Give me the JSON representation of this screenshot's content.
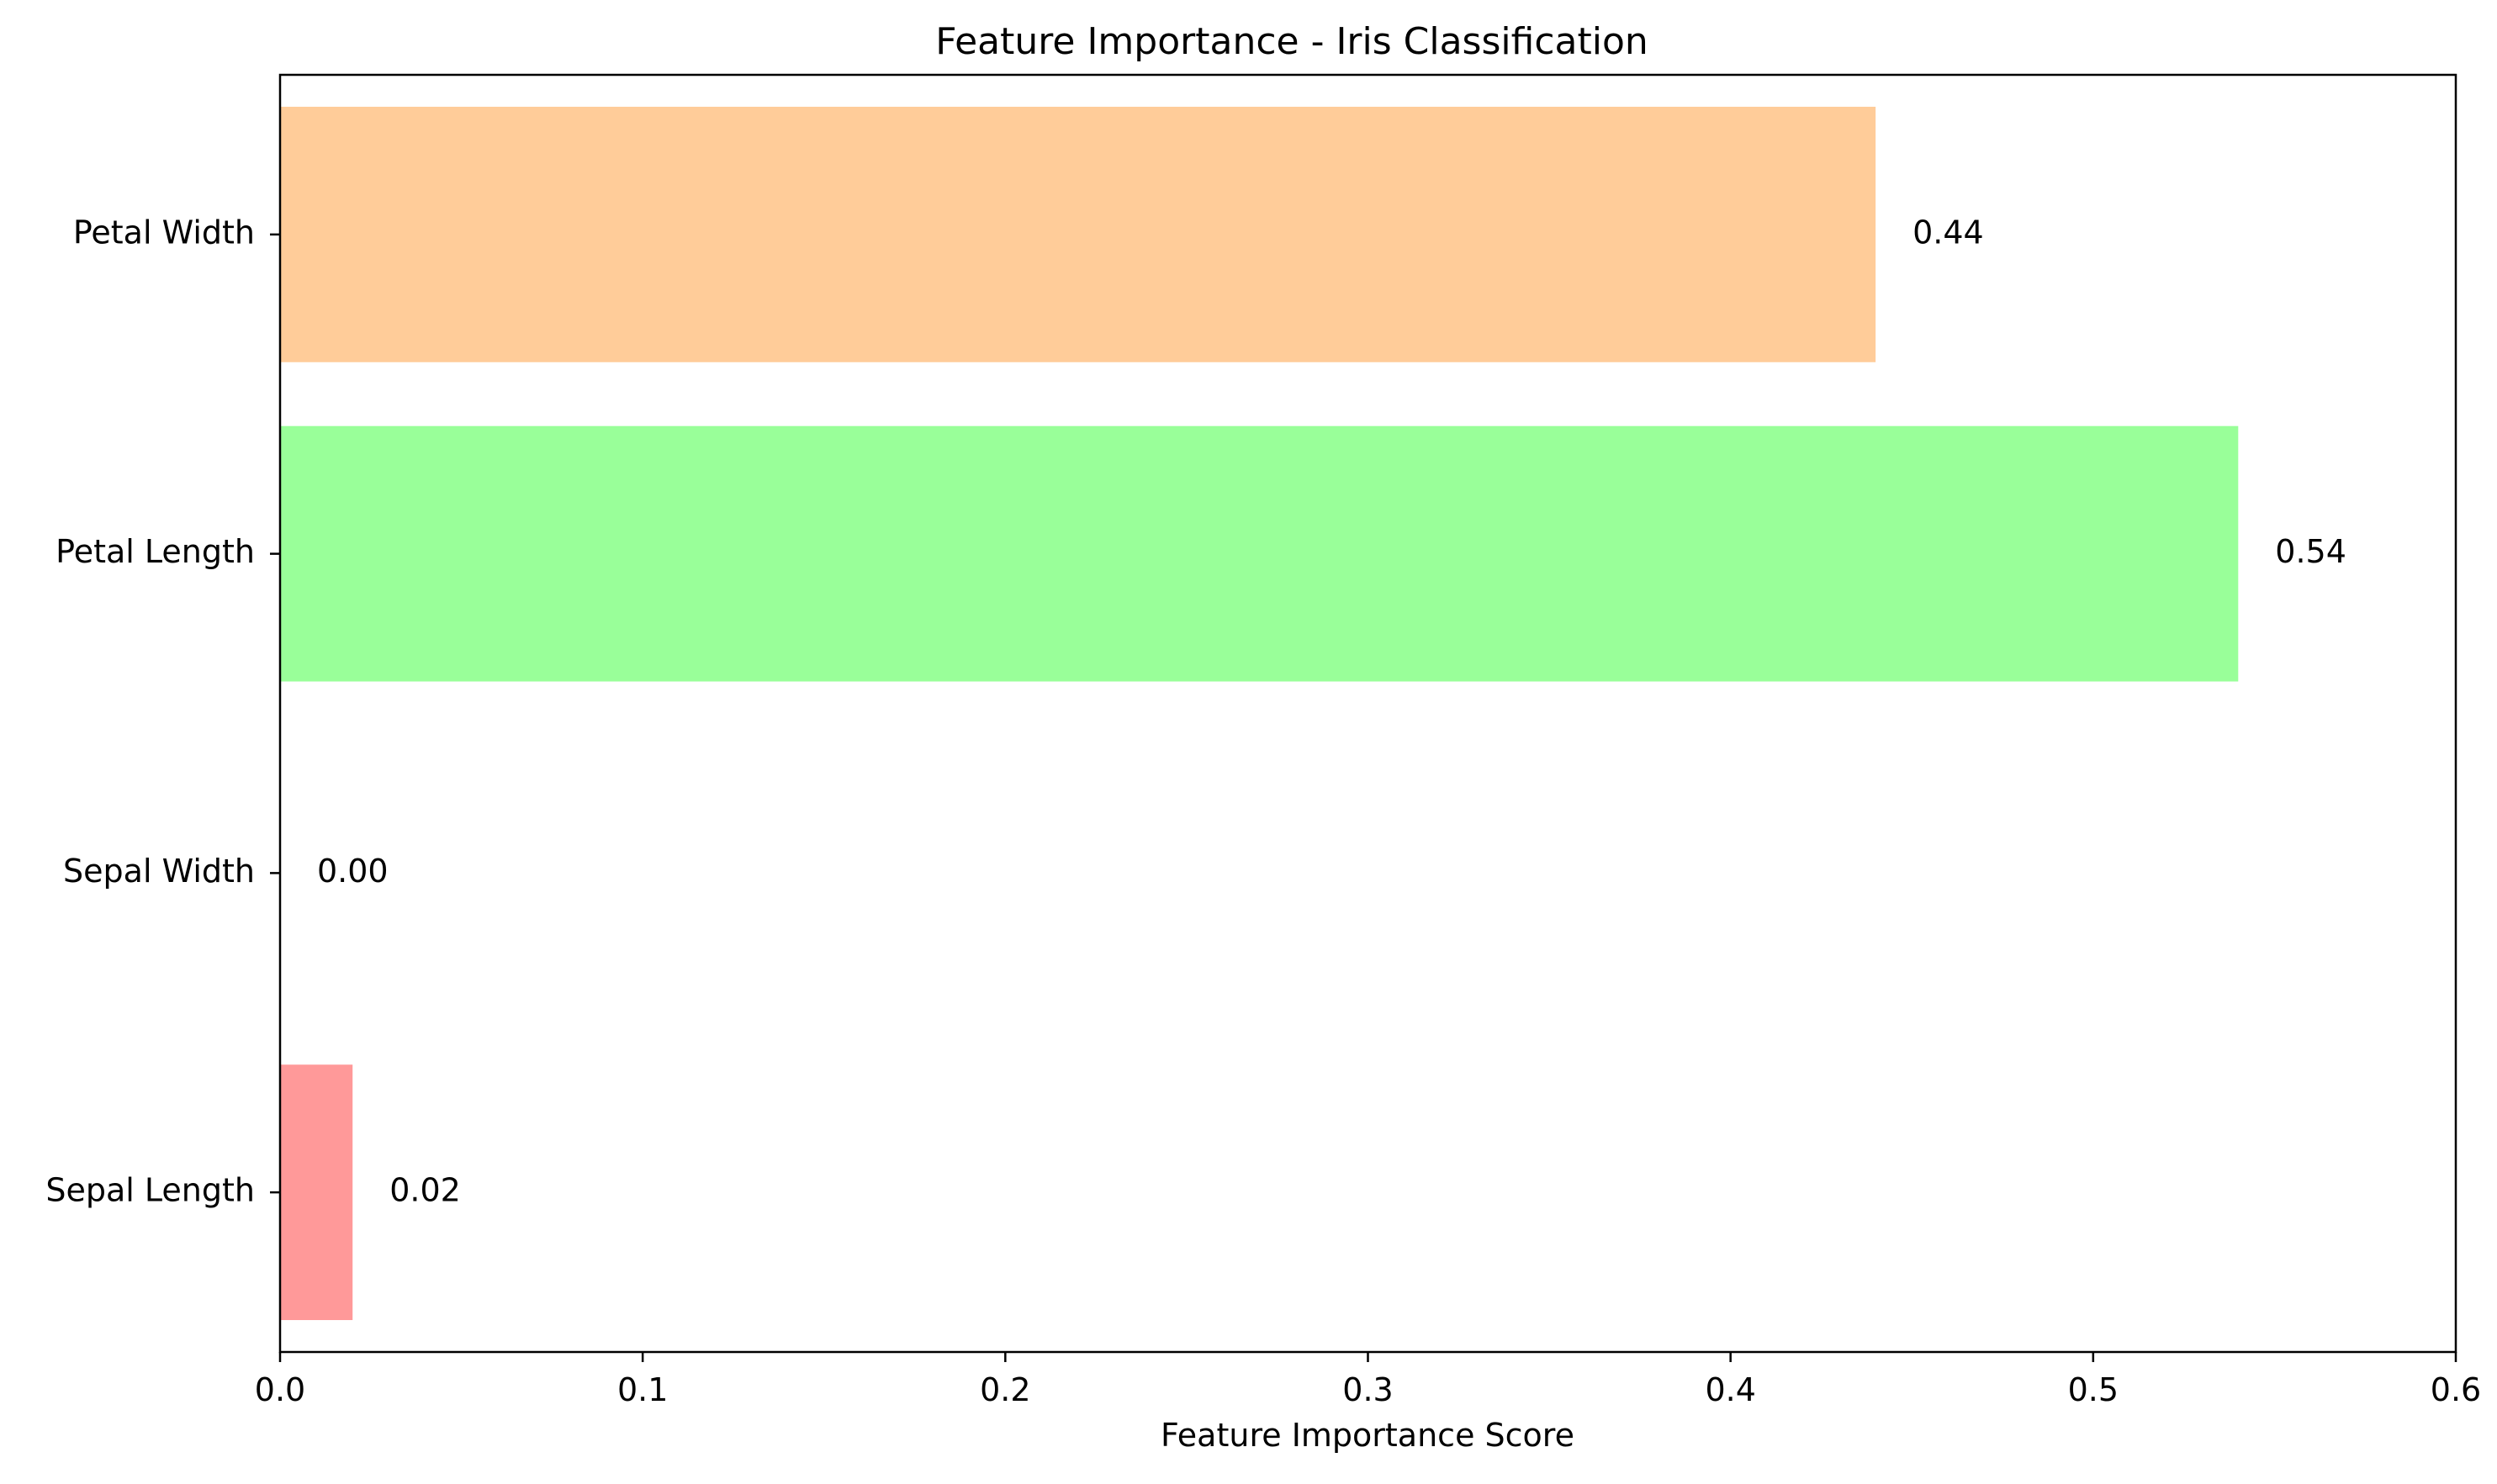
{
  "chart_data": {
    "type": "bar",
    "orientation": "horizontal",
    "title": "Feature Importance - Iris Classification",
    "xlabel": "Feature Importance Score",
    "ylabel": "",
    "xlim": [
      0.0,
      0.6
    ],
    "xticks": [
      0.0,
      0.1,
      0.2,
      0.3,
      0.4,
      0.5,
      0.6
    ],
    "xtick_labels": [
      "0.0",
      "0.1",
      "0.2",
      "0.3",
      "0.4",
      "0.5",
      "0.6"
    ],
    "categories": [
      "Sepal Length",
      "Sepal Width",
      "Petal Length",
      "Petal Width"
    ],
    "values": [
      0.02,
      0.0,
      0.54,
      0.44
    ],
    "value_labels": [
      "0.02",
      "0.00",
      "0.54",
      "0.44"
    ],
    "colors": [
      "#ff9999",
      "#66b3ff",
      "#99ff99",
      "#ffcc99"
    ],
    "grid": false,
    "legend": "none"
  }
}
